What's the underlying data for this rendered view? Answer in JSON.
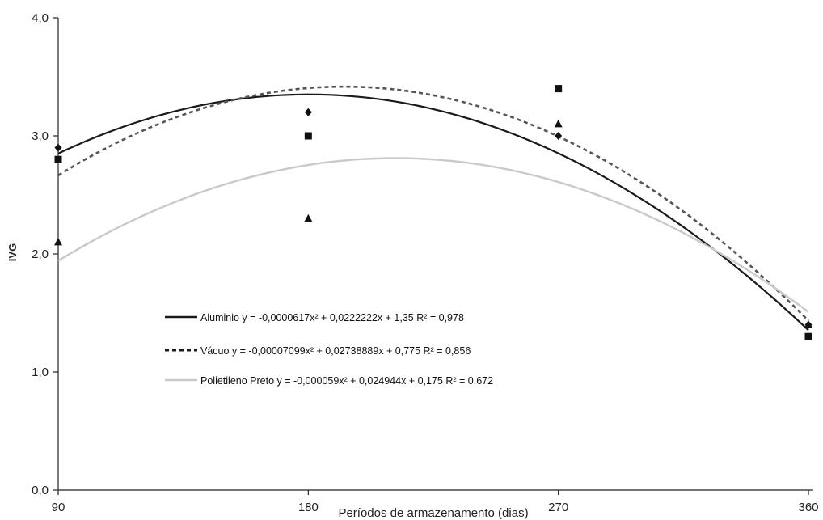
{
  "chart_data": {
    "type": "scatter",
    "xlabel": "Períodos de armazenamento (dias)",
    "ylabel": "IVG",
    "xlim": [
      90,
      360
    ],
    "ylim": [
      0,
      4
    ],
    "x_ticks": [
      90,
      180,
      270,
      360
    ],
    "x_tick_labels": [
      "90",
      "180",
      "270",
      "360"
    ],
    "y_ticks": [
      0,
      1,
      2,
      3,
      4
    ],
    "y_tick_labels": [
      "0,0",
      "1,0",
      "2,0",
      "3,0",
      "4,0"
    ],
    "grid": false,
    "legend_position": "center-left",
    "series": [
      {
        "name": "Aluminio",
        "marker": "diamond",
        "line_style": "solid",
        "color": "#1a1a1a",
        "x": [
          90,
          180,
          270,
          360
        ],
        "y": [
          2.9,
          3.2,
          3.0,
          1.4
        ],
        "fit": {
          "a": -6.17e-05,
          "b": 0.0222222,
          "c": 1.35
        },
        "legend_label": "Aluminio   y = -0,0000617x² + 0,0222222x + 1,35  R² = 0,978"
      },
      {
        "name": "Vácuo",
        "marker": "square",
        "line_style": "dashed",
        "color": "#1a1a1a",
        "x": [
          90,
          180,
          270,
          360
        ],
        "y": [
          2.8,
          3.0,
          3.4,
          1.3
        ],
        "fit": {
          "a": -7.099e-05,
          "b": 0.02738889,
          "c": 0.775
        },
        "legend_label": "Vácuo   y = -0,00007099x² + 0,02738889x + 0,775  R² = 0,856"
      },
      {
        "name": "Polietileno Preto",
        "marker": "triangle",
        "line_style": "solid",
        "color": "#c9c9c9",
        "x": [
          90,
          180,
          270,
          360
        ],
        "y": [
          2.1,
          2.3,
          3.1,
          1.4
        ],
        "fit": {
          "a": -5.9e-05,
          "b": 0.024944,
          "c": 0.175
        },
        "legend_label": "Polietileno Preto  y = -0,000059x² + 0,024944x + 0,175  R² = 0,672"
      }
    ]
  }
}
